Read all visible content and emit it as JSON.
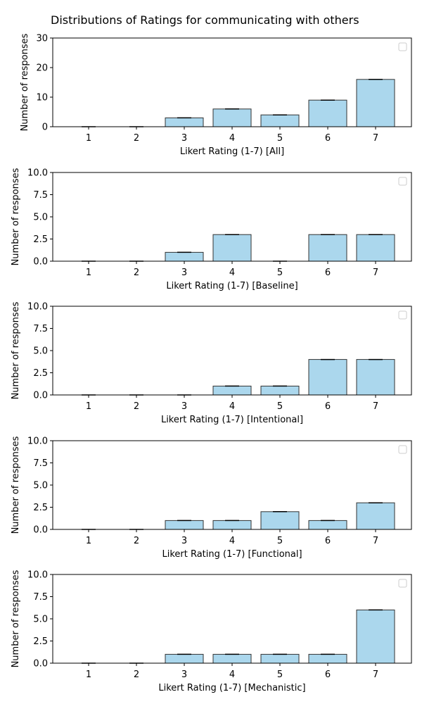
{
  "figure_title": "Distributions of Ratings for communicating with others",
  "colors": {
    "bar_fill": "#abd7ed",
    "bar_edge": "#333333",
    "axis": "#000000"
  },
  "chart_data": [
    {
      "type": "bar",
      "categories": [
        "1",
        "2",
        "3",
        "4",
        "5",
        "6",
        "7"
      ],
      "values": [
        0,
        0,
        3,
        6,
        4,
        9,
        16
      ],
      "xlabel": "Likert Rating (1-7) [All]",
      "ylabel": "Number of responses",
      "ylim": [
        0,
        30
      ],
      "yticks": [
        "0",
        "10",
        "20",
        "30"
      ],
      "legend": "top-right (empty)",
      "grid": false
    },
    {
      "type": "bar",
      "categories": [
        "1",
        "2",
        "3",
        "4",
        "5",
        "6",
        "7"
      ],
      "values": [
        0,
        0,
        1,
        3,
        0,
        3,
        3
      ],
      "xlabel": "Likert Rating (1-7) [Baseline]",
      "ylabel": "Number of responses",
      "ylim": [
        0,
        10
      ],
      "yticks": [
        "0.0",
        "2.5",
        "5.0",
        "7.5",
        "10.0"
      ],
      "legend": "top-right (empty)",
      "grid": false
    },
    {
      "type": "bar",
      "categories": [
        "1",
        "2",
        "3",
        "4",
        "5",
        "6",
        "7"
      ],
      "values": [
        0,
        0,
        0,
        1,
        1,
        4,
        4
      ],
      "xlabel": "Likert Rating (1-7) [Intentional]",
      "ylabel": "Number of responses",
      "ylim": [
        0,
        10
      ],
      "yticks": [
        "0.0",
        "2.5",
        "5.0",
        "7.5",
        "10.0"
      ],
      "legend": "top-right (empty)",
      "grid": false
    },
    {
      "type": "bar",
      "categories": [
        "1",
        "2",
        "3",
        "4",
        "5",
        "6",
        "7"
      ],
      "values": [
        0,
        0,
        1,
        1,
        2,
        1,
        3
      ],
      "xlabel": "Likert Rating (1-7) [Functional]",
      "ylabel": "Number of responses",
      "ylim": [
        0,
        10
      ],
      "yticks": [
        "0.0",
        "2.5",
        "5.0",
        "7.5",
        "10.0"
      ],
      "legend": "top-right (empty)",
      "grid": false
    },
    {
      "type": "bar",
      "categories": [
        "1",
        "2",
        "3",
        "4",
        "5",
        "6",
        "7"
      ],
      "values": [
        0,
        0,
        1,
        1,
        1,
        1,
        6
      ],
      "xlabel": "Likert Rating (1-7) [Mechanistic]",
      "ylabel": "Number of responses",
      "ylim": [
        0,
        10
      ],
      "yticks": [
        "0.0",
        "2.5",
        "5.0",
        "7.5",
        "10.0"
      ],
      "legend": "top-right (empty)",
      "grid": false
    }
  ]
}
